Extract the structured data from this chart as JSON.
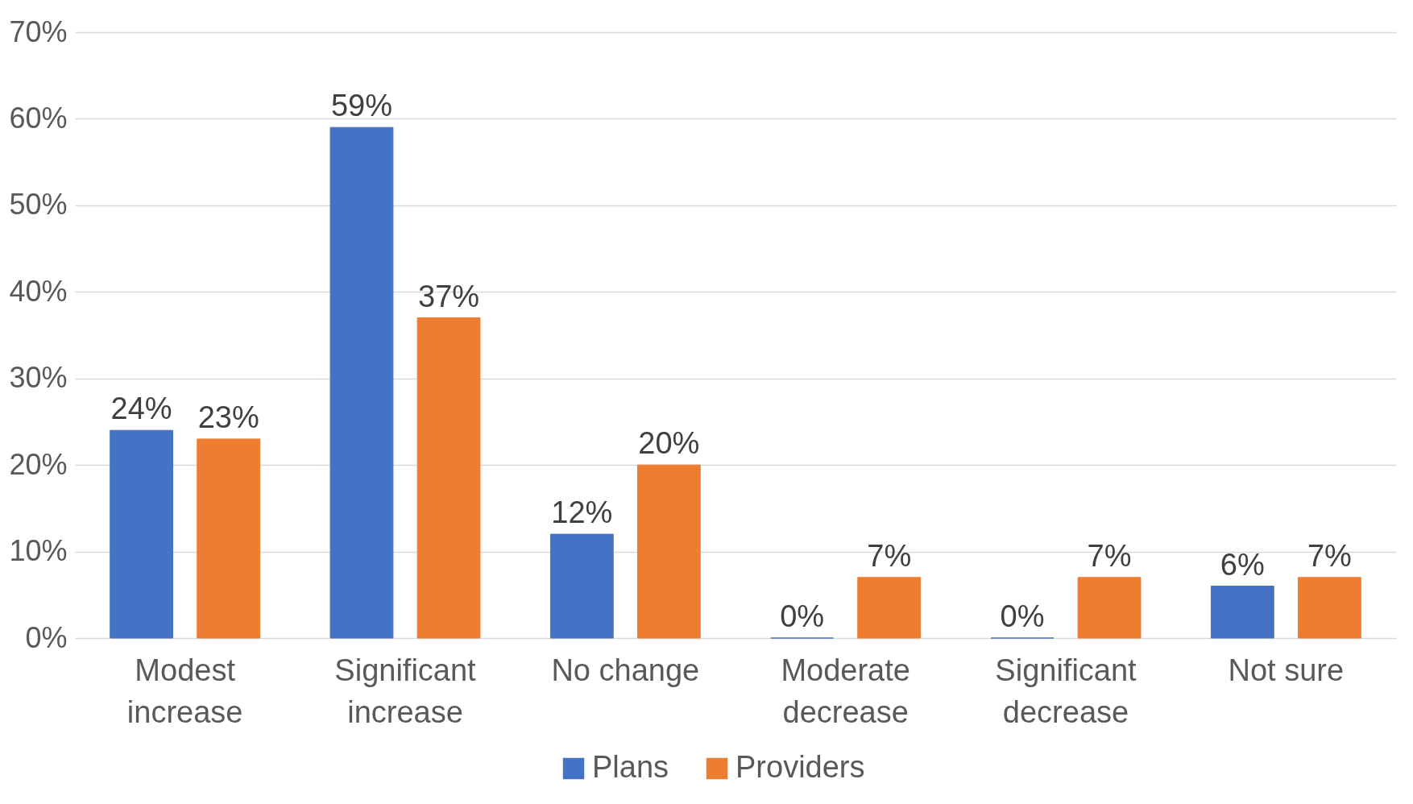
{
  "chart_data": {
    "type": "bar",
    "categories": [
      "Modest increase",
      "Significant increase",
      "No change",
      "Moderate decrease",
      "Significant decrease",
      "Not sure"
    ],
    "series": [
      {
        "name": "Plans",
        "color": "#4472c4",
        "values": [
          24,
          59,
          12,
          0,
          0,
          6
        ],
        "value_labels": [
          "24%",
          "59%",
          "12%",
          "0%",
          "0%",
          "6%"
        ]
      },
      {
        "name": "Providers",
        "color": "#ed7d31",
        "values": [
          23,
          37,
          20,
          7,
          7,
          7
        ],
        "value_labels": [
          "23%",
          "37%",
          "20%",
          "7%",
          "7%",
          "7%"
        ]
      }
    ],
    "ylim": [
      0,
      70
    ],
    "yticks": [
      {
        "value": 0,
        "label": "0%"
      },
      {
        "value": 10,
        "label": "10%"
      },
      {
        "value": 20,
        "label": "20%"
      },
      {
        "value": 30,
        "label": "30%"
      },
      {
        "value": 40,
        "label": "40%"
      },
      {
        "value": 50,
        "label": "50%"
      },
      {
        "value": 60,
        "label": "60%"
      },
      {
        "value": 70,
        "label": "70%"
      }
    ],
    "grid": "y",
    "legend": "bottom"
  }
}
